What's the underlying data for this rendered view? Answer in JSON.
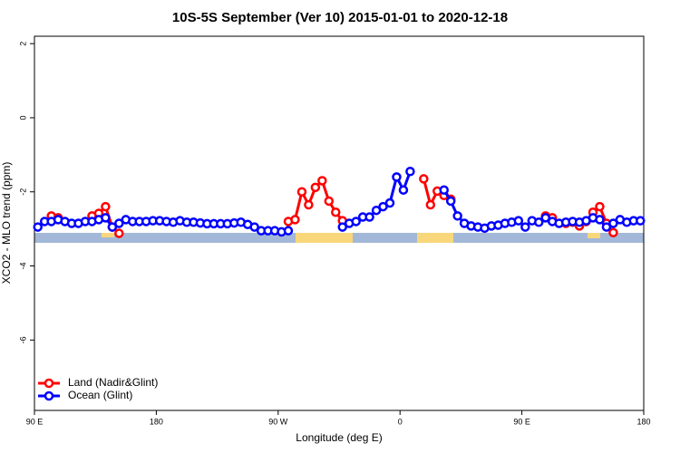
{
  "chart_data": {
    "type": "line",
    "title": "10S-5S September (Ver 10)   2015-01-01 to 2020-12-18",
    "xlabel": "Longitude (deg E)",
    "ylabel": "XCO2 - MLO trend (ppm)",
    "xlim": [
      90,
      540
    ],
    "ylim": [
      -7.9,
      2.2
    ],
    "xticks": [
      {
        "value": 90,
        "label": "90 E"
      },
      180,
      {
        "value": 270,
        "label": "90 W"
      },
      {
        "value": 360,
        "label": "0"
      },
      {
        "value": 450,
        "label": "90 E"
      },
      {
        "value": 540,
        "label": "180"
      }
    ],
    "yticks": [
      2,
      0,
      -2,
      -4,
      -6
    ],
    "legend": "lower left",
    "x": [
      92.5,
      97.5,
      102.5,
      107.5,
      112.5,
      117.5,
      122.5,
      127.5,
      132.5,
      137.5,
      142.5,
      147.5,
      152.5,
      157.5,
      162.5,
      167.5,
      172.5,
      177.5,
      182.5,
      187.5,
      192.5,
      197.5,
      202.5,
      207.5,
      212.5,
      217.5,
      222.5,
      227.5,
      232.5,
      237.5,
      242.5,
      247.5,
      252.5,
      257.5,
      262.5,
      267.5,
      272.5,
      277.5,
      282.5,
      287.5,
      292.5,
      297.5,
      302.5,
      307.5,
      312.5,
      317.5,
      322.5,
      327.5,
      332.5,
      337.5,
      342.5,
      347.5,
      352.5,
      357.5,
      362.5,
      367.5,
      372.5,
      377.5,
      382.5,
      387.5,
      392.5,
      397.5,
      402.5,
      407.5,
      412.5,
      417.5,
      422.5,
      427.5,
      432.5,
      437.5,
      442.5,
      447.5,
      452.5,
      457.5,
      462.5,
      467.5,
      472.5,
      477.5,
      482.5,
      487.5,
      492.5,
      497.5,
      502.5,
      507.5,
      512.5,
      517.5,
      522.5,
      527.5,
      532.5,
      537.5
    ],
    "series": [
      {
        "name": "Land (Nadir&Glint)",
        "color": "#ff0000",
        "values": [
          null,
          null,
          -2.65,
          -2.7,
          null,
          null,
          null,
          null,
          -2.65,
          -2.58,
          -2.4,
          -2.95,
          -3.12,
          null,
          null,
          null,
          null,
          null,
          null,
          null,
          null,
          null,
          null,
          null,
          null,
          null,
          null,
          null,
          null,
          null,
          null,
          null,
          null,
          null,
          null,
          null,
          null,
          -2.8,
          -2.75,
          -2.0,
          -2.35,
          -1.88,
          -1.7,
          -2.25,
          -2.55,
          -2.78,
          null,
          null,
          null,
          null,
          null,
          null,
          null,
          null,
          null,
          null,
          null,
          -1.65,
          -2.35,
          -1.98,
          -2.1,
          -2.2,
          null,
          null,
          null,
          null,
          null,
          null,
          null,
          null,
          null,
          null,
          null,
          null,
          null,
          -2.65,
          -2.7,
          null,
          -2.85,
          -2.82,
          -2.92,
          -2.8,
          -2.55,
          -2.4,
          -2.85,
          -3.1,
          null,
          null,
          null,
          null
        ]
      },
      {
        "name": "Ocean (Glint)",
        "color": "#0000ff",
        "values": [
          -2.95,
          -2.8,
          -2.8,
          -2.75,
          -2.8,
          -2.85,
          -2.85,
          -2.8,
          -2.8,
          -2.75,
          -2.7,
          -2.95,
          -2.85,
          -2.75,
          -2.8,
          -2.8,
          -2.8,
          -2.78,
          -2.78,
          -2.8,
          -2.82,
          -2.78,
          -2.82,
          -2.82,
          -2.84,
          -2.86,
          -2.86,
          -2.86,
          -2.86,
          -2.84,
          -2.82,
          -2.88,
          -2.95,
          -3.05,
          -3.05,
          -3.05,
          -3.08,
          -3.05,
          null,
          null,
          null,
          null,
          null,
          null,
          null,
          -2.95,
          -2.85,
          -2.8,
          -2.68,
          -2.68,
          -2.5,
          -2.4,
          -2.3,
          -1.6,
          -1.95,
          -1.45,
          null,
          null,
          null,
          null,
          -1.95,
          -2.25,
          -2.65,
          -2.85,
          -2.92,
          -2.95,
          -2.98,
          -2.92,
          -2.9,
          -2.85,
          -2.82,
          -2.78,
          -2.95,
          -2.78,
          -2.82,
          -2.7,
          -2.8,
          -2.85,
          -2.82,
          -2.8,
          -2.82,
          -2.78,
          -2.7,
          -2.75,
          -2.95,
          -2.85,
          -2.75,
          -2.82,
          -2.78,
          -2.78
        ]
      }
    ]
  }
}
